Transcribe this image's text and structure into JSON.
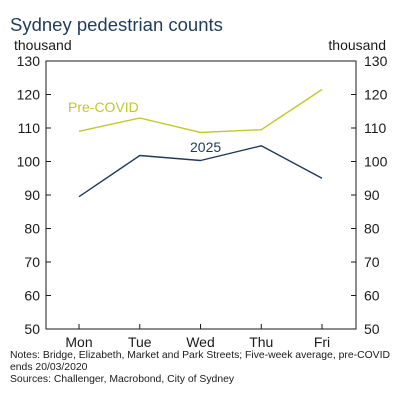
{
  "title": "Sydney pedestrian counts",
  "unit_left": "thousand",
  "unit_right": "thousand",
  "notes": "Notes: Bridge, Elizabeth, Market and Park Streets; Five-week average, pre-COVID ends 20/03/2020",
  "sources": "Sources: Challenger, Macrobond, City of Sydney",
  "colors": {
    "pre_covid": "#c2c72a",
    "y2025": "#1f3b5a"
  },
  "chart_data": {
    "type": "line",
    "title": "Sydney pedestrian counts",
    "ylabel": "thousand",
    "categories": [
      "Mon",
      "Tue",
      "Wed",
      "Thu",
      "Fri"
    ],
    "ylim": [
      50,
      130
    ],
    "yticks": [
      50,
      60,
      70,
      80,
      90,
      100,
      110,
      120,
      130
    ],
    "grid": false,
    "series": [
      {
        "name": "Pre-COVID",
        "values": [
          109,
          113,
          108.7,
          109.5,
          121.5
        ]
      },
      {
        "name": "2025",
        "values": [
          89.5,
          101.8,
          100.3,
          104.7,
          95
        ]
      }
    ]
  }
}
